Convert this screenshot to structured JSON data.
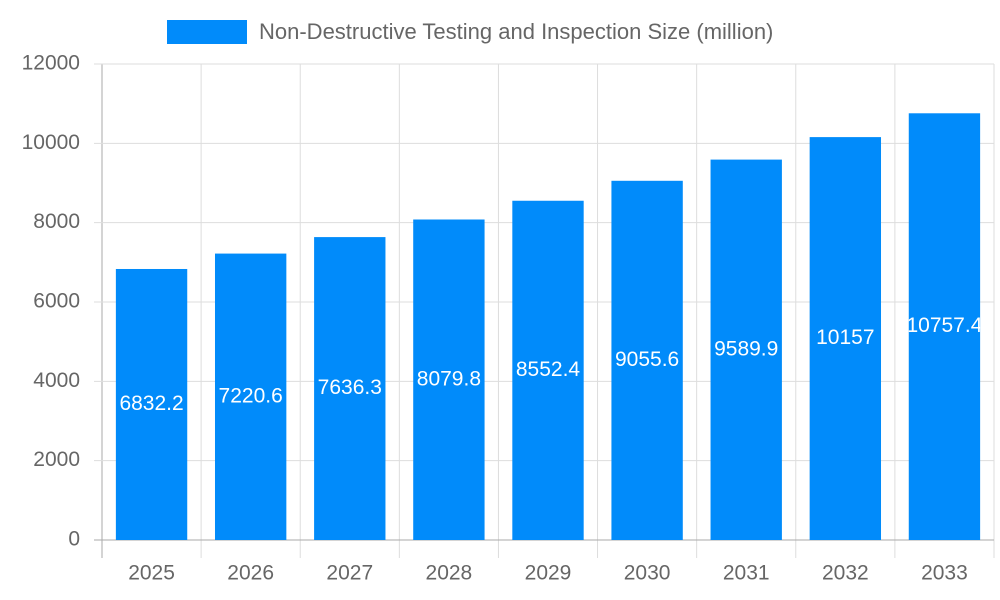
{
  "chart_data": {
    "type": "bar",
    "categories": [
      "2025",
      "2026",
      "2027",
      "2028",
      "2029",
      "2030",
      "2031",
      "2032",
      "2033"
    ],
    "series": [
      {
        "name": "Non-Destructive Testing and Inspection Size (million)",
        "color": "#018bfa",
        "values": [
          6832.2,
          7220.6,
          7636.3,
          8079.8,
          8552.4,
          9055.6,
          9589.9,
          10157,
          10757.4
        ]
      }
    ],
    "ylim": [
      0,
      12000
    ],
    "yticks": [
      0,
      2000,
      4000,
      6000,
      8000,
      10000,
      12000
    ],
    "grid": true,
    "legend": "top"
  }
}
